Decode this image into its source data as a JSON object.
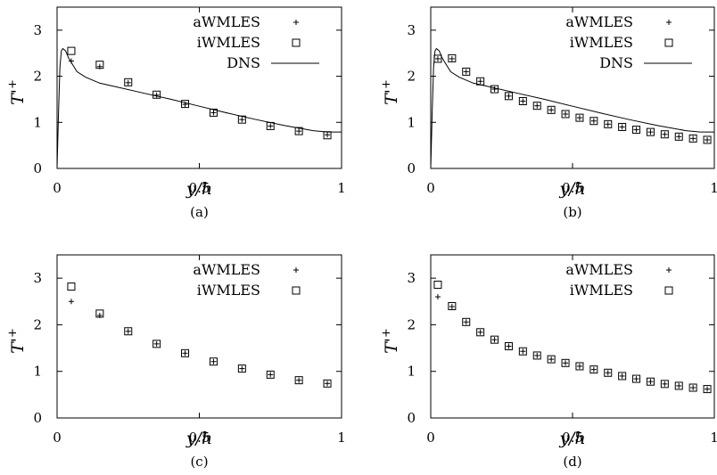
{
  "chart_data": [
    {
      "type": "scatter",
      "caption": "(a)",
      "xlabel": "y/h",
      "ylabel": "T'+",
      "xlim": [
        0,
        1
      ],
      "ylim": [
        0,
        3.5
      ],
      "xticks": [
        "0",
        "0.5",
        "1"
      ],
      "yticks": [
        "0",
        "1",
        "2",
        "3"
      ],
      "grid": false,
      "legend_position": "top-right",
      "series": [
        {
          "name": "aWMLES",
          "marker": "plus",
          "x": [
            0.05,
            0.15,
            0.25,
            0.35,
            0.45,
            0.55,
            0.65,
            0.75,
            0.85,
            0.95
          ],
          "y": [
            2.33,
            2.21,
            1.86,
            1.59,
            1.39,
            1.21,
            1.06,
            0.92,
            0.81,
            0.73
          ]
        },
        {
          "name": "iWMLES",
          "marker": "square",
          "x": [
            0.05,
            0.15,
            0.25,
            0.35,
            0.45,
            0.55,
            0.65,
            0.75,
            0.85,
            0.95
          ],
          "y": [
            2.55,
            2.25,
            1.87,
            1.6,
            1.4,
            1.21,
            1.06,
            0.92,
            0.81,
            0.72
          ]
        },
        {
          "name": "DNS",
          "marker": "line",
          "x": [
            0,
            0.005,
            0.01,
            0.015,
            0.02,
            0.03,
            0.04,
            0.05,
            0.07,
            0.1,
            0.15,
            0.2,
            0.3,
            0.4,
            0.5,
            0.6,
            0.7,
            0.8,
            0.9,
            0.95,
            1.0
          ],
          "y": [
            0,
            1.2,
            2.2,
            2.55,
            2.6,
            2.55,
            2.4,
            2.3,
            2.1,
            1.98,
            1.85,
            1.78,
            1.64,
            1.5,
            1.35,
            1.2,
            1.06,
            0.93,
            0.82,
            0.79,
            0.79
          ]
        }
      ]
    },
    {
      "type": "scatter",
      "caption": "(b)",
      "xlabel": "y/h",
      "ylabel": "T'+",
      "xlim": [
        0,
        1
      ],
      "ylim": [
        0,
        3.5
      ],
      "xticks": [
        "0",
        "0.5",
        "1"
      ],
      "yticks": [
        "0",
        "1",
        "2",
        "3"
      ],
      "grid": false,
      "legend_position": "top-right",
      "series": [
        {
          "name": "aWMLES",
          "marker": "plus",
          "x": [
            0.025,
            0.075,
            0.125,
            0.175,
            0.225,
            0.275,
            0.325,
            0.375,
            0.425,
            0.475,
            0.525,
            0.575,
            0.625,
            0.675,
            0.725,
            0.775,
            0.825,
            0.875,
            0.925,
            0.975
          ],
          "y": [
            2.38,
            2.38,
            2.1,
            1.89,
            1.72,
            1.57,
            1.46,
            1.36,
            1.27,
            1.18,
            1.1,
            1.03,
            0.96,
            0.9,
            0.84,
            0.79,
            0.74,
            0.69,
            0.65,
            0.62
          ]
        },
        {
          "name": "iWMLES",
          "marker": "square",
          "x": [
            0.025,
            0.075,
            0.125,
            0.175,
            0.225,
            0.275,
            0.325,
            0.375,
            0.425,
            0.475,
            0.525,
            0.575,
            0.625,
            0.675,
            0.725,
            0.775,
            0.825,
            0.875,
            0.925,
            0.975
          ],
          "y": [
            2.38,
            2.39,
            2.1,
            1.89,
            1.72,
            1.57,
            1.46,
            1.36,
            1.27,
            1.18,
            1.1,
            1.03,
            0.96,
            0.9,
            0.84,
            0.79,
            0.74,
            0.69,
            0.65,
            0.62
          ]
        },
        {
          "name": "DNS",
          "marker": "line",
          "x": [
            0,
            0.005,
            0.01,
            0.015,
            0.02,
            0.03,
            0.04,
            0.05,
            0.07,
            0.1,
            0.15,
            0.2,
            0.3,
            0.4,
            0.5,
            0.6,
            0.7,
            0.8,
            0.9,
            0.95,
            1.0
          ],
          "y": [
            0,
            1.2,
            2.2,
            2.55,
            2.6,
            2.55,
            2.4,
            2.3,
            2.1,
            1.98,
            1.85,
            1.78,
            1.64,
            1.5,
            1.35,
            1.2,
            1.06,
            0.93,
            0.82,
            0.79,
            0.79
          ]
        }
      ]
    },
    {
      "type": "scatter",
      "caption": "(c)",
      "xlabel": "y/h",
      "ylabel": "T'+",
      "xlim": [
        0,
        1
      ],
      "ylim": [
        0,
        3.5
      ],
      "xticks": [
        "0",
        "0.5",
        "1"
      ],
      "yticks": [
        "0",
        "1",
        "2",
        "3"
      ],
      "grid": false,
      "legend_position": "top-right",
      "series": [
        {
          "name": "aWMLES",
          "marker": "plus",
          "x": [
            0.05,
            0.15,
            0.25,
            0.35,
            0.45,
            0.55,
            0.65,
            0.75,
            0.85,
            0.95
          ],
          "y": [
            2.5,
            2.2,
            1.86,
            1.59,
            1.39,
            1.21,
            1.06,
            0.93,
            0.81,
            0.74
          ]
        },
        {
          "name": "iWMLES",
          "marker": "square",
          "x": [
            0.05,
            0.15,
            0.25,
            0.35,
            0.45,
            0.55,
            0.65,
            0.75,
            0.85,
            0.95
          ],
          "y": [
            2.82,
            2.24,
            1.86,
            1.59,
            1.39,
            1.21,
            1.06,
            0.93,
            0.81,
            0.74
          ]
        }
      ]
    },
    {
      "type": "scatter",
      "caption": "(d)",
      "xlabel": "y/h",
      "ylabel": "T'+",
      "xlim": [
        0,
        1
      ],
      "ylim": [
        0,
        3.5
      ],
      "xticks": [
        "0",
        "0.5",
        "1"
      ],
      "yticks": [
        "0",
        "1",
        "2",
        "3"
      ],
      "grid": false,
      "legend_position": "top-right",
      "series": [
        {
          "name": "aWMLES",
          "marker": "plus",
          "x": [
            0.025,
            0.075,
            0.125,
            0.175,
            0.225,
            0.275,
            0.325,
            0.375,
            0.425,
            0.475,
            0.525,
            0.575,
            0.625,
            0.675,
            0.725,
            0.775,
            0.825,
            0.875,
            0.925,
            0.975
          ],
          "y": [
            2.6,
            2.39,
            2.06,
            1.84,
            1.68,
            1.54,
            1.43,
            1.34,
            1.26,
            1.18,
            1.11,
            1.04,
            0.97,
            0.9,
            0.84,
            0.78,
            0.73,
            0.69,
            0.65,
            0.62
          ]
        },
        {
          "name": "iWMLES",
          "marker": "square",
          "x": [
            0.025,
            0.075,
            0.125,
            0.175,
            0.225,
            0.275,
            0.325,
            0.375,
            0.425,
            0.475,
            0.525,
            0.575,
            0.625,
            0.675,
            0.725,
            0.775,
            0.825,
            0.875,
            0.925,
            0.975
          ],
          "y": [
            2.86,
            2.4,
            2.06,
            1.84,
            1.68,
            1.54,
            1.43,
            1.34,
            1.26,
            1.18,
            1.11,
            1.04,
            0.97,
            0.9,
            0.84,
            0.78,
            0.73,
            0.69,
            0.65,
            0.62
          ]
        }
      ]
    }
  ]
}
